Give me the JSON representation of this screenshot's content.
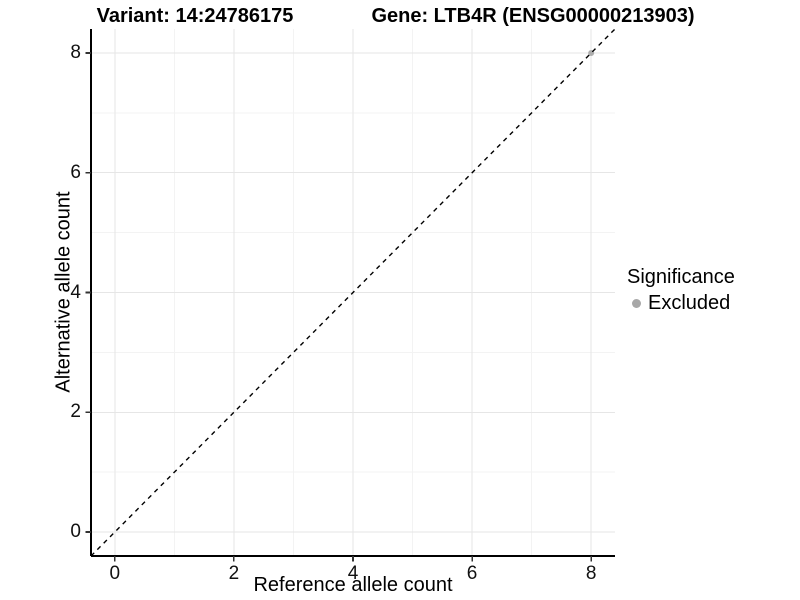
{
  "chart_data": {
    "type": "scatter",
    "title_left": "Variant: 14:24786175",
    "title_right": "Gene: LTB4R (ENSG00000213903)",
    "xlabel": "Reference allele count",
    "ylabel": "Alternative allele count",
    "xlim": [
      -0.4,
      8.4
    ],
    "ylim": [
      -0.4,
      8.4
    ],
    "x_ticks": [
      0,
      2,
      4,
      6,
      8
    ],
    "y_ticks": [
      0,
      2,
      4,
      6,
      8
    ],
    "x_minor_ticks": [
      1,
      3,
      5,
      7
    ],
    "y_minor_ticks": [
      1,
      3,
      5,
      7
    ],
    "grid": "major+minor",
    "series": [
      {
        "name": "Excluded",
        "marker": "circle",
        "size": 3,
        "color": "#aaaaaa",
        "points": [
          [
            8,
            8
          ]
        ]
      }
    ],
    "reference_line": {
      "kind": "identity y=x",
      "from": [
        -0.4,
        -0.4
      ],
      "to": [
        8.4,
        8.4
      ],
      "style": "dashed",
      "color": "#000000"
    },
    "legend": {
      "title": "Significance",
      "position": "right",
      "entries": [
        {
          "label": "Excluded",
          "color": "#a8a8a8",
          "marker": "circle"
        }
      ]
    },
    "colors": {
      "background": "#ffffff",
      "grid_major": "#e6e6e6",
      "grid_minor": "#f3f3f3",
      "axis_line": "#000000",
      "tick": "#333333",
      "text": "#000000"
    }
  }
}
